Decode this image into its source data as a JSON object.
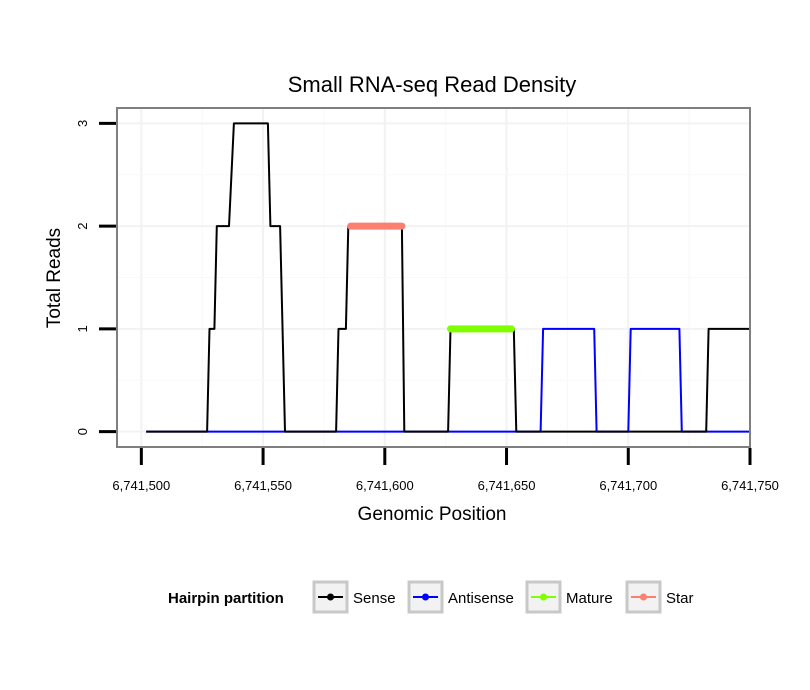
{
  "chart_data": {
    "type": "line",
    "title": "Small RNA-seq Read Density",
    "xlabel": "Genomic Position",
    "ylabel": "Total Reads",
    "xlim": [
      6741490,
      6741750
    ],
    "ylim": [
      -0.15,
      3.15
    ],
    "x_ticks": [
      6741500,
      6741550,
      6741600,
      6741650,
      6741700,
      6741750
    ],
    "x_tick_labels": [
      "6,741,500",
      "6,741,550",
      "6,741,600",
      "6,741,650",
      "6,741,700",
      "6,741,750"
    ],
    "y_ticks": [
      0,
      1,
      2,
      3
    ],
    "y_tick_labels": [
      "0",
      "1",
      "2",
      "3"
    ],
    "grid": true,
    "legend": {
      "title": "Hairpin partition",
      "position": "bottom",
      "entries": [
        {
          "name": "Sense",
          "color": "#000000"
        },
        {
          "name": "Antisense",
          "color": "#0000ff"
        },
        {
          "name": "Mature",
          "color": "#7fff00"
        },
        {
          "name": "Star",
          "color": "#fa8072"
        }
      ]
    },
    "series": [
      {
        "name": "Sense",
        "color": "#000000",
        "points": [
          [
            6741502,
            0
          ],
          [
            6741527,
            0
          ],
          [
            6741528,
            1
          ],
          [
            6741530,
            1
          ],
          [
            6741531,
            2
          ],
          [
            6741536,
            2
          ],
          [
            6741538,
            3
          ],
          [
            6741552,
            3
          ],
          [
            6741553,
            2
          ],
          [
            6741557,
            2
          ],
          [
            6741559,
            0
          ],
          [
            6741580,
            0
          ],
          [
            6741581,
            1
          ],
          [
            6741584,
            1
          ],
          [
            6741585,
            2
          ],
          [
            6741607,
            2
          ],
          [
            6741608,
            0
          ],
          [
            6741626,
            0
          ],
          [
            6741627,
            1
          ],
          [
            6741653,
            1
          ],
          [
            6741654,
            0
          ],
          [
            6741732,
            0
          ],
          [
            6741733,
            1
          ],
          [
            6741750,
            1
          ]
        ]
      },
      {
        "name": "Antisense",
        "color": "#0000ff",
        "points": [
          [
            6741502,
            0
          ],
          [
            6741664,
            0
          ],
          [
            6741665,
            1
          ],
          [
            6741686,
            1
          ],
          [
            6741687,
            0
          ],
          [
            6741700,
            0
          ],
          [
            6741701,
            1
          ],
          [
            6741721,
            1
          ],
          [
            6741722,
            0
          ],
          [
            6741750,
            0
          ]
        ]
      },
      {
        "name": "Mature",
        "color": "#7fff00",
        "points": [
          [
            6741627,
            1
          ],
          [
            6741652,
            1
          ]
        ]
      },
      {
        "name": "Star",
        "color": "#fa8072",
        "points": [
          [
            6741586,
            2
          ],
          [
            6741607,
            2
          ]
        ]
      }
    ]
  }
}
